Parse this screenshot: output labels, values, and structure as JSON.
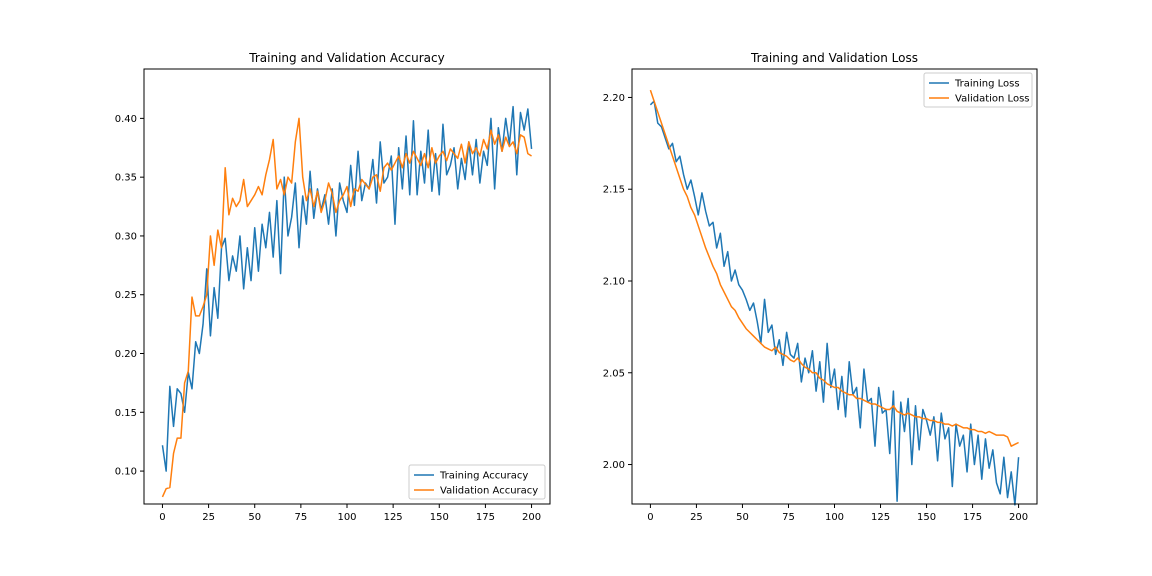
{
  "chart_data": [
    {
      "type": "line",
      "title": "Training and Validation Accuracy",
      "xlim": [
        -10,
        210
      ],
      "ylim": [
        0.072,
        0.442
      ],
      "xticks": [
        0,
        25,
        50,
        75,
        100,
        125,
        150,
        175,
        200
      ],
      "yticks": [
        0.1,
        0.15,
        0.2,
        0.25,
        0.3,
        0.35,
        0.4
      ],
      "ytick_labels": [
        "0.10",
        "0.15",
        "0.20",
        "0.25",
        "0.30",
        "0.35",
        "0.40"
      ],
      "legend_position": "lower right",
      "series": [
        {
          "name": "Training Accuracy",
          "color": "#1f77b4",
          "x": [
            0,
            2,
            4,
            6,
            8,
            10,
            12,
            14,
            16,
            18,
            20,
            22,
            24,
            26,
            28,
            30,
            32,
            34,
            36,
            38,
            40,
            42,
            44,
            46,
            48,
            50,
            52,
            54,
            56,
            58,
            60,
            62,
            64,
            66,
            68,
            70,
            72,
            74,
            76,
            78,
            80,
            82,
            84,
            86,
            88,
            90,
            92,
            94,
            96,
            98,
            100,
            102,
            104,
            106,
            108,
            110,
            112,
            114,
            116,
            118,
            120,
            122,
            124,
            126,
            128,
            130,
            132,
            134,
            136,
            138,
            140,
            142,
            144,
            146,
            148,
            150,
            152,
            154,
            156,
            158,
            160,
            162,
            164,
            166,
            168,
            170,
            172,
            174,
            176,
            178,
            180,
            182,
            184,
            186,
            188,
            190,
            192,
            194,
            196,
            198,
            200
          ],
          "y": [
            0.122,
            0.1,
            0.172,
            0.138,
            0.17,
            0.166,
            0.15,
            0.184,
            0.17,
            0.21,
            0.2,
            0.225,
            0.272,
            0.215,
            0.256,
            0.23,
            0.29,
            0.298,
            0.262,
            0.283,
            0.27,
            0.3,
            0.255,
            0.29,
            0.262,
            0.307,
            0.27,
            0.31,
            0.29,
            0.32,
            0.282,
            0.33,
            0.268,
            0.35,
            0.3,
            0.316,
            0.345,
            0.29,
            0.334,
            0.31,
            0.355,
            0.315,
            0.34,
            0.322,
            0.335,
            0.31,
            0.34,
            0.3,
            0.345,
            0.33,
            0.32,
            0.36,
            0.326,
            0.372,
            0.33,
            0.345,
            0.34,
            0.365,
            0.328,
            0.38,
            0.345,
            0.35,
            0.368,
            0.31,
            0.375,
            0.34,
            0.385,
            0.335,
            0.398,
            0.335,
            0.372,
            0.345,
            0.39,
            0.338,
            0.37,
            0.335,
            0.395,
            0.352,
            0.36,
            0.375,
            0.34,
            0.366,
            0.348,
            0.38,
            0.352,
            0.382,
            0.345,
            0.372,
            0.36,
            0.4,
            0.34,
            0.392,
            0.372,
            0.4,
            0.378,
            0.41,
            0.352,
            0.405,
            0.39,
            0.408,
            0.374
          ]
        },
        {
          "name": "Validation Accuracy",
          "color": "#ff7f0e",
          "x": [
            0,
            2,
            4,
            6,
            8,
            10,
            12,
            14,
            16,
            18,
            20,
            22,
            24,
            26,
            28,
            30,
            32,
            34,
            36,
            38,
            40,
            42,
            44,
            46,
            48,
            50,
            52,
            54,
            56,
            58,
            60,
            62,
            64,
            66,
            68,
            70,
            72,
            74,
            76,
            78,
            80,
            82,
            84,
            86,
            88,
            90,
            92,
            94,
            96,
            98,
            100,
            102,
            104,
            106,
            108,
            110,
            112,
            114,
            116,
            118,
            120,
            122,
            124,
            126,
            128,
            130,
            132,
            134,
            136,
            138,
            140,
            142,
            144,
            146,
            148,
            150,
            152,
            154,
            156,
            158,
            160,
            162,
            164,
            166,
            168,
            170,
            172,
            174,
            176,
            178,
            180,
            182,
            184,
            186,
            188,
            190,
            192,
            194,
            196,
            198,
            200
          ],
          "y": [
            0.078,
            0.085,
            0.086,
            0.115,
            0.128,
            0.128,
            0.175,
            0.185,
            0.248,
            0.232,
            0.232,
            0.24,
            0.25,
            0.3,
            0.275,
            0.305,
            0.29,
            0.358,
            0.318,
            0.332,
            0.325,
            0.33,
            0.348,
            0.325,
            0.33,
            0.335,
            0.342,
            0.335,
            0.352,
            0.365,
            0.382,
            0.34,
            0.348,
            0.335,
            0.35,
            0.345,
            0.38,
            0.4,
            0.35,
            0.33,
            0.34,
            0.325,
            0.338,
            0.32,
            0.33,
            0.345,
            0.336,
            0.32,
            0.33,
            0.335,
            0.342,
            0.325,
            0.34,
            0.338,
            0.348,
            0.344,
            0.34,
            0.35,
            0.352,
            0.338,
            0.358,
            0.362,
            0.356,
            0.362,
            0.368,
            0.358,
            0.37,
            0.362,
            0.372,
            0.366,
            0.36,
            0.37,
            0.358,
            0.375,
            0.362,
            0.368,
            0.372,
            0.364,
            0.374,
            0.37,
            0.366,
            0.378,
            0.362,
            0.38,
            0.37,
            0.375,
            0.368,
            0.382,
            0.374,
            0.39,
            0.378,
            0.386,
            0.372,
            0.384,
            0.376,
            0.38,
            0.37,
            0.386,
            0.384,
            0.37,
            0.368
          ]
        }
      ]
    },
    {
      "type": "line",
      "title": "Training and Validation Loss",
      "xlim": [
        -10,
        210
      ],
      "ylim": [
        1.9785,
        2.2155
      ],
      "xticks": [
        0,
        25,
        50,
        75,
        100,
        125,
        150,
        175,
        200
      ],
      "yticks": [
        2.0,
        2.05,
        2.1,
        2.15,
        2.2
      ],
      "ytick_labels": [
        "2.00",
        "2.05",
        "2.10",
        "2.15",
        "2.20"
      ],
      "legend_position": "upper right",
      "series": [
        {
          "name": "Training Loss",
          "color": "#1f77b4",
          "x": [
            0,
            2,
            4,
            6,
            8,
            10,
            12,
            14,
            16,
            18,
            20,
            22,
            24,
            26,
            28,
            30,
            32,
            34,
            36,
            38,
            40,
            42,
            44,
            46,
            48,
            50,
            52,
            54,
            56,
            58,
            60,
            62,
            64,
            66,
            68,
            70,
            72,
            74,
            76,
            78,
            80,
            82,
            84,
            86,
            88,
            90,
            92,
            94,
            96,
            98,
            100,
            102,
            104,
            106,
            108,
            110,
            112,
            114,
            116,
            118,
            120,
            122,
            124,
            126,
            128,
            130,
            132,
            134,
            136,
            138,
            140,
            142,
            144,
            146,
            148,
            150,
            152,
            154,
            156,
            158,
            160,
            162,
            164,
            166,
            168,
            170,
            172,
            174,
            176,
            178,
            180,
            182,
            184,
            186,
            188,
            190,
            192,
            194,
            196,
            198,
            200
          ],
          "y": [
            2.196,
            2.198,
            2.186,
            2.184,
            2.178,
            2.172,
            2.175,
            2.165,
            2.168,
            2.158,
            2.15,
            2.155,
            2.146,
            2.136,
            2.148,
            2.138,
            2.13,
            2.132,
            2.118,
            2.126,
            2.108,
            2.116,
            2.1,
            2.106,
            2.098,
            2.095,
            2.09,
            2.084,
            2.088,
            2.078,
            2.066,
            2.09,
            2.072,
            2.076,
            2.06,
            2.068,
            2.054,
            2.072,
            2.06,
            2.058,
            2.066,
            2.045,
            2.058,
            2.05,
            2.062,
            2.04,
            2.056,
            2.034,
            2.066,
            2.042,
            2.052,
            2.03,
            2.048,
            2.026,
            2.056,
            2.038,
            2.042,
            2.02,
            2.052,
            2.034,
            2.036,
            2.01,
            2.042,
            2.028,
            2.03,
            2.006,
            2.04,
            1.98,
            2.034,
            2.018,
            2.036,
            2.0,
            2.032,
            2.008,
            2.03,
            2.024,
            2.016,
            2.026,
            2.002,
            2.028,
            2.014,
            2.02,
            1.988,
            2.022,
            2.01,
            2.016,
            1.996,
            2.022,
            2.0,
            2.016,
            1.992,
            2.014,
            1.998,
            2.008,
            1.99,
            1.984,
            2.004,
            1.982,
            1.996,
            1.978,
            2.004
          ]
        },
        {
          "name": "Validation Loss",
          "color": "#ff7f0e",
          "x": [
            0,
            2,
            4,
            6,
            8,
            10,
            12,
            14,
            16,
            18,
            20,
            22,
            24,
            26,
            28,
            30,
            32,
            34,
            36,
            38,
            40,
            42,
            44,
            46,
            48,
            50,
            52,
            54,
            56,
            58,
            60,
            62,
            64,
            66,
            68,
            70,
            72,
            74,
            76,
            78,
            80,
            82,
            84,
            86,
            88,
            90,
            92,
            94,
            96,
            98,
            100,
            102,
            104,
            106,
            108,
            110,
            112,
            114,
            116,
            118,
            120,
            122,
            124,
            126,
            128,
            130,
            132,
            134,
            136,
            138,
            140,
            142,
            144,
            146,
            148,
            150,
            152,
            154,
            156,
            158,
            160,
            162,
            164,
            166,
            168,
            170,
            172,
            174,
            176,
            178,
            180,
            182,
            184,
            186,
            188,
            190,
            192,
            194,
            196,
            198,
            200
          ],
          "y": [
            2.204,
            2.198,
            2.192,
            2.186,
            2.18,
            2.174,
            2.168,
            2.162,
            2.156,
            2.15,
            2.146,
            2.14,
            2.136,
            2.13,
            2.124,
            2.118,
            2.113,
            2.108,
            2.104,
            2.098,
            2.094,
            2.09,
            2.086,
            2.084,
            2.08,
            2.077,
            2.074,
            2.072,
            2.07,
            2.068,
            2.066,
            2.064,
            2.063,
            2.062,
            2.064,
            2.061,
            2.06,
            2.059,
            2.057,
            2.056,
            2.058,
            2.055,
            2.053,
            2.052,
            2.05,
            2.05,
            2.047,
            2.046,
            2.044,
            2.043,
            2.042,
            2.042,
            2.04,
            2.039,
            2.038,
            2.038,
            2.036,
            2.036,
            2.035,
            2.034,
            2.033,
            2.033,
            2.032,
            2.031,
            2.03,
            2.03,
            2.032,
            2.029,
            2.028,
            2.027,
            2.028,
            2.027,
            2.026,
            2.026,
            2.025,
            2.025,
            2.024,
            2.024,
            2.023,
            2.023,
            2.022,
            2.022,
            2.021,
            2.022,
            2.021,
            2.02,
            2.02,
            2.019,
            2.019,
            2.018,
            2.018,
            2.017,
            2.018,
            2.017,
            2.016,
            2.016,
            2.016,
            2.015,
            2.01,
            2.011,
            2.012
          ]
        }
      ]
    }
  ]
}
